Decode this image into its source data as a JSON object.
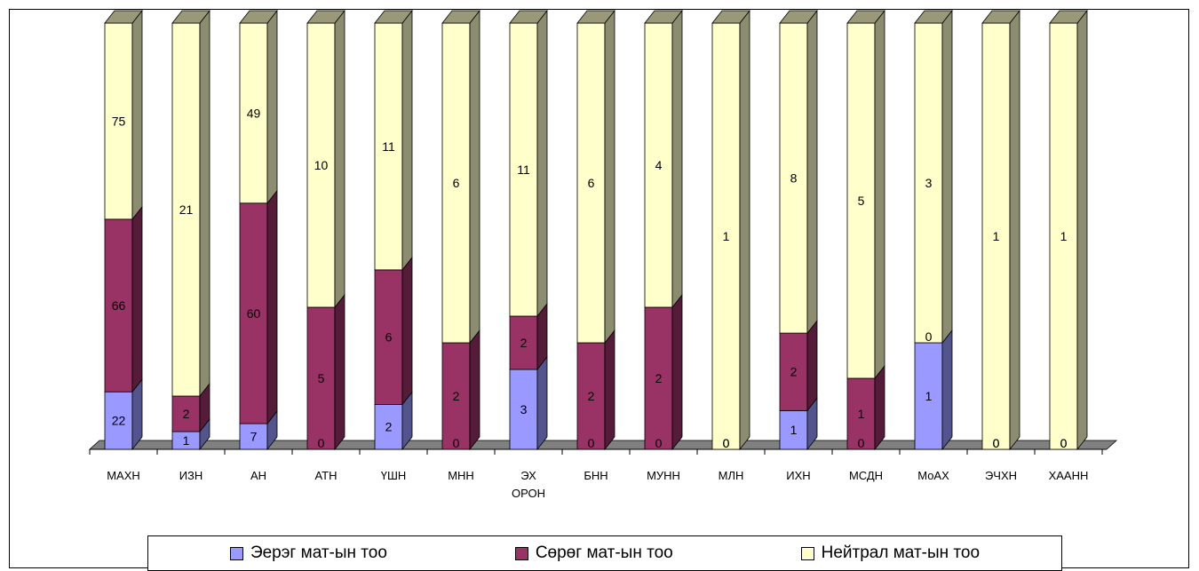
{
  "chart_data": {
    "type": "bar",
    "stacked": true,
    "three_d": true,
    "percent_stacked": true,
    "categories": [
      [
        "МАХН"
      ],
      [
        "ИЗН"
      ],
      [
        "АН"
      ],
      [
        "АТН"
      ],
      [
        "ҮШН"
      ],
      [
        "МНН"
      ],
      [
        "ЭХ",
        "ОРОН"
      ],
      [
        "БНН"
      ],
      [
        "МУНН"
      ],
      [
        "МЛН"
      ],
      [
        "ИХН"
      ],
      [
        "МСДН"
      ],
      [
        "МоАХ"
      ],
      [
        "ЭЧХН"
      ],
      [
        "ХААНН"
      ]
    ],
    "series": [
      {
        "name": "Эерэг мат-ын тоо",
        "color": "#9999ff",
        "values": [
          22,
          1,
          7,
          0,
          2,
          0,
          3,
          0,
          0,
          0,
          1,
          0,
          1,
          0,
          0
        ]
      },
      {
        "name": "Сөрөг мат-ын тоо",
        "color": "#993366",
        "values": [
          66,
          2,
          60,
          5,
          6,
          2,
          2,
          2,
          2,
          0,
          2,
          1,
          0,
          0,
          0
        ]
      },
      {
        "name": "Нейтрал мат-ын тоо",
        "color": "#ffffcc",
        "values": [
          75,
          21,
          49,
          10,
          11,
          6,
          11,
          6,
          4,
          1,
          8,
          5,
          3,
          1,
          1
        ]
      }
    ],
    "legend_position": "bottom",
    "grid": false
  }
}
